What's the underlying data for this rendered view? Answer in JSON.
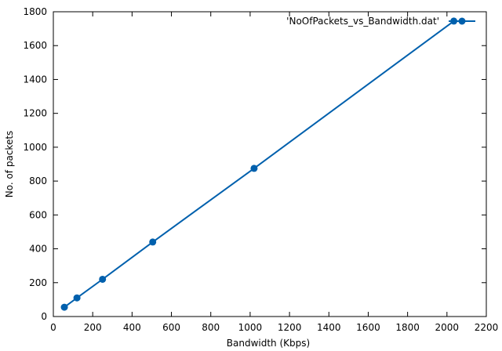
{
  "chart_data": {
    "type": "line",
    "xlabel": "Bandwidth (Kbps)",
    "ylabel": "No. of packets",
    "xlim": [
      0,
      2200
    ],
    "ylim": [
      0,
      1800
    ],
    "xticks": [
      0,
      200,
      400,
      600,
      800,
      1000,
      1200,
      1400,
      1600,
      1800,
      2000,
      2200
    ],
    "yticks": [
      0,
      200,
      400,
      600,
      800,
      1000,
      1200,
      1400,
      1600,
      1800
    ],
    "grid": false,
    "legend_position": "top-right",
    "series": [
      {
        "name": "'NoOfPackets_vs_Bandwidth.dat'",
        "color": "#0060ad",
        "marker": "circle",
        "x": [
          56,
          120,
          250,
          505,
          1020,
          2035
        ],
        "y": [
          55,
          110,
          220,
          440,
          875,
          1745
        ]
      }
    ]
  }
}
